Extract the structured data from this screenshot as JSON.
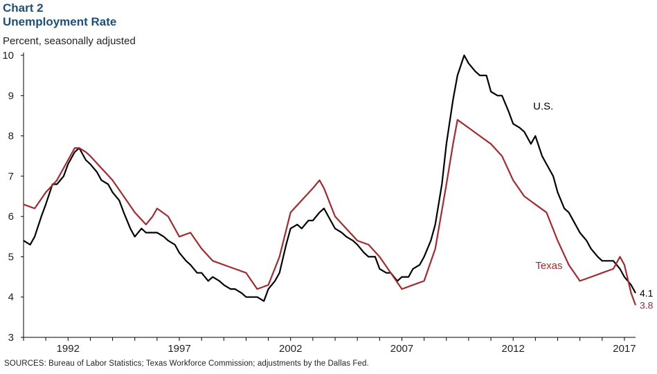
{
  "header": {
    "chart_number": "Chart 2",
    "title": "Unemployment Rate",
    "units": "Percent, seasonally adjusted"
  },
  "footer": {
    "source": "SOURCES: Bureau of Labor Statistics; Texas Workforce Commission; adjustments by the Dallas Fed."
  },
  "chart_data": {
    "type": "line",
    "title": "Unemployment Rate",
    "subtitle": "Percent, seasonally adjusted",
    "xlabel": "",
    "ylabel": "",
    "xlim": [
      1990.0,
      2017.5
    ],
    "ylim": [
      3,
      10
    ],
    "y_ticks": [
      3,
      4,
      5,
      6,
      7,
      8,
      9,
      10
    ],
    "x_ticks": [
      1992,
      1997,
      2002,
      2007,
      2012,
      2017
    ],
    "grid": false,
    "legend": "inline labels",
    "series": [
      {
        "name": "U.S.",
        "color": "#000000",
        "end_label": "4.1",
        "points": [
          [
            1990.0,
            5.4
          ],
          [
            1990.3,
            5.3
          ],
          [
            1990.5,
            5.5
          ],
          [
            1990.8,
            6.0
          ],
          [
            1991.0,
            6.3
          ],
          [
            1991.3,
            6.8
          ],
          [
            1991.5,
            6.8
          ],
          [
            1991.8,
            7.0
          ],
          [
            1992.0,
            7.3
          ],
          [
            1992.3,
            7.6
          ],
          [
            1992.5,
            7.7
          ],
          [
            1992.8,
            7.4
          ],
          [
            1993.0,
            7.3
          ],
          [
            1993.3,
            7.1
          ],
          [
            1993.5,
            6.9
          ],
          [
            1993.8,
            6.8
          ],
          [
            1994.0,
            6.6
          ],
          [
            1994.3,
            6.4
          ],
          [
            1994.5,
            6.1
          ],
          [
            1994.8,
            5.7
          ],
          [
            1995.0,
            5.5
          ],
          [
            1995.3,
            5.7
          ],
          [
            1995.5,
            5.6
          ],
          [
            1995.8,
            5.6
          ],
          [
            1996.0,
            5.6
          ],
          [
            1996.3,
            5.5
          ],
          [
            1996.5,
            5.4
          ],
          [
            1996.8,
            5.3
          ],
          [
            1997.0,
            5.1
          ],
          [
            1997.3,
            4.9
          ],
          [
            1997.5,
            4.8
          ],
          [
            1997.8,
            4.6
          ],
          [
            1998.0,
            4.6
          ],
          [
            1998.3,
            4.4
          ],
          [
            1998.5,
            4.5
          ],
          [
            1998.8,
            4.4
          ],
          [
            1999.0,
            4.3
          ],
          [
            1999.3,
            4.2
          ],
          [
            1999.5,
            4.2
          ],
          [
            1999.8,
            4.1
          ],
          [
            2000.0,
            4.0
          ],
          [
            2000.3,
            4.0
          ],
          [
            2000.5,
            4.0
          ],
          [
            2000.8,
            3.9
          ],
          [
            2001.0,
            4.2
          ],
          [
            2001.3,
            4.4
          ],
          [
            2001.5,
            4.6
          ],
          [
            2001.8,
            5.3
          ],
          [
            2002.0,
            5.7
          ],
          [
            2002.3,
            5.8
          ],
          [
            2002.5,
            5.7
          ],
          [
            2002.8,
            5.9
          ],
          [
            2003.0,
            5.9
          ],
          [
            2003.3,
            6.1
          ],
          [
            2003.5,
            6.2
          ],
          [
            2003.8,
            5.9
          ],
          [
            2004.0,
            5.7
          ],
          [
            2004.3,
            5.6
          ],
          [
            2004.5,
            5.5
          ],
          [
            2004.8,
            5.4
          ],
          [
            2005.0,
            5.3
          ],
          [
            2005.3,
            5.1
          ],
          [
            2005.5,
            5.0
          ],
          [
            2005.8,
            5.0
          ],
          [
            2006.0,
            4.7
          ],
          [
            2006.3,
            4.6
          ],
          [
            2006.5,
            4.6
          ],
          [
            2006.8,
            4.4
          ],
          [
            2007.0,
            4.5
          ],
          [
            2007.3,
            4.5
          ],
          [
            2007.5,
            4.7
          ],
          [
            2007.8,
            4.8
          ],
          [
            2008.0,
            5.0
          ],
          [
            2008.3,
            5.4
          ],
          [
            2008.5,
            5.8
          ],
          [
            2008.8,
            6.8
          ],
          [
            2009.0,
            7.8
          ],
          [
            2009.3,
            8.9
          ],
          [
            2009.5,
            9.5
          ],
          [
            2009.8,
            10.0
          ],
          [
            2010.0,
            9.8
          ],
          [
            2010.3,
            9.6
          ],
          [
            2010.5,
            9.5
          ],
          [
            2010.8,
            9.5
          ],
          [
            2011.0,
            9.1
          ],
          [
            2011.3,
            9.0
          ],
          [
            2011.5,
            9.0
          ],
          [
            2011.8,
            8.6
          ],
          [
            2012.0,
            8.3
          ],
          [
            2012.3,
            8.2
          ],
          [
            2012.5,
            8.1
          ],
          [
            2012.8,
            7.8
          ],
          [
            2013.0,
            8.0
          ],
          [
            2013.3,
            7.5
          ],
          [
            2013.5,
            7.3
          ],
          [
            2013.8,
            7.0
          ],
          [
            2014.0,
            6.6
          ],
          [
            2014.3,
            6.2
          ],
          [
            2014.5,
            6.1
          ],
          [
            2014.8,
            5.8
          ],
          [
            2015.0,
            5.6
          ],
          [
            2015.3,
            5.4
          ],
          [
            2015.5,
            5.2
          ],
          [
            2015.8,
            5.0
          ],
          [
            2016.0,
            4.9
          ],
          [
            2016.3,
            4.9
          ],
          [
            2016.5,
            4.9
          ],
          [
            2016.8,
            4.7
          ],
          [
            2017.0,
            4.5
          ],
          [
            2017.3,
            4.3
          ],
          [
            2017.5,
            4.1
          ]
        ]
      },
      {
        "name": "Texas",
        "color": "#a6282e",
        "end_label": "3.8",
        "points": [
          [
            1990.0,
            6.3
          ],
          [
            1990.5,
            6.2
          ],
          [
            1991.0,
            6.6
          ],
          [
            1991.5,
            6.9
          ],
          [
            1992.0,
            7.4
          ],
          [
            1992.3,
            7.7
          ],
          [
            1992.5,
            7.7
          ],
          [
            1992.8,
            7.6
          ],
          [
            1993.0,
            7.5
          ],
          [
            1993.5,
            7.2
          ],
          [
            1994.0,
            6.9
          ],
          [
            1994.5,
            6.5
          ],
          [
            1995.0,
            6.1
          ],
          [
            1995.5,
            5.8
          ],
          [
            1995.8,
            6.0
          ],
          [
            1996.0,
            6.2
          ],
          [
            1996.5,
            6.0
          ],
          [
            1997.0,
            5.5
          ],
          [
            1997.5,
            5.6
          ],
          [
            1998.0,
            5.2
          ],
          [
            1998.5,
            4.9
          ],
          [
            1999.0,
            4.8
          ],
          [
            1999.5,
            4.7
          ],
          [
            2000.0,
            4.6
          ],
          [
            2000.5,
            4.2
          ],
          [
            2001.0,
            4.3
          ],
          [
            2001.5,
            5.0
          ],
          [
            2002.0,
            6.1
          ],
          [
            2002.5,
            6.4
          ],
          [
            2003.0,
            6.7
          ],
          [
            2003.3,
            6.9
          ],
          [
            2003.5,
            6.7
          ],
          [
            2004.0,
            6.0
          ],
          [
            2004.5,
            5.7
          ],
          [
            2005.0,
            5.4
          ],
          [
            2005.5,
            5.3
          ],
          [
            2006.0,
            5.0
          ],
          [
            2006.5,
            4.6
          ],
          [
            2007.0,
            4.2
          ],
          [
            2007.5,
            4.3
          ],
          [
            2008.0,
            4.4
          ],
          [
            2008.5,
            5.2
          ],
          [
            2009.0,
            6.8
          ],
          [
            2009.3,
            7.8
          ],
          [
            2009.5,
            8.4
          ],
          [
            2010.0,
            8.2
          ],
          [
            2010.5,
            8.0
          ],
          [
            2011.0,
            7.8
          ],
          [
            2011.5,
            7.5
          ],
          [
            2012.0,
            6.9
          ],
          [
            2012.5,
            6.5
          ],
          [
            2013.0,
            6.3
          ],
          [
            2013.5,
            6.1
          ],
          [
            2014.0,
            5.4
          ],
          [
            2014.5,
            4.8
          ],
          [
            2015.0,
            4.4
          ],
          [
            2015.5,
            4.5
          ],
          [
            2016.0,
            4.6
          ],
          [
            2016.5,
            4.7
          ],
          [
            2016.8,
            5.0
          ],
          [
            2017.0,
            4.8
          ],
          [
            2017.3,
            4.1
          ],
          [
            2017.5,
            3.8
          ]
        ]
      }
    ],
    "annotations": [
      {
        "text": "U.S.",
        "x": 2012.9,
        "y": 8.65,
        "color": "#000000"
      },
      {
        "text": "Texas",
        "x": 2013.0,
        "y": 4.7,
        "color": "#a6282e"
      }
    ]
  }
}
